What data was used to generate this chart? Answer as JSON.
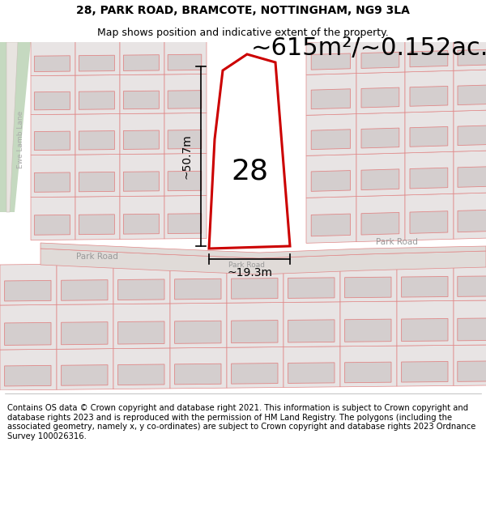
{
  "title": "28, PARK ROAD, BRAMCOTE, NOTTINGHAM, NG9 3LA",
  "subtitle": "Map shows position and indicative extent of the property.",
  "area_label": "~615m²/~0.152ac.",
  "dim_height": "~50.7m",
  "dim_width": "~19.3m",
  "number_label": "28",
  "footer": "Contains OS data © Crown copyright and database right 2021. This information is subject to Crown copyright and database rights 2023 and is reproduced with the permission of HM Land Registry. The polygons (including the associated geometry, namely x, y co-ordinates) are subject to Crown copyright and database rights 2023 Ordnance Survey 100026316.",
  "bg_color": "#f0ecea",
  "plot_line_color": "#cc0000",
  "map_line_color": "#e08888",
  "building_fill": "#d4cece",
  "road_fill": "#e8e4e4",
  "title_fontsize": 10,
  "subtitle_fontsize": 9,
  "area_label_fontsize": 22,
  "dim_fontsize": 10,
  "number_fontsize": 26,
  "footer_fontsize": 7.2,
  "road_label_color": "#999999",
  "street_label_fontsize": 7.5,
  "green_color": "#c5d9c0",
  "white": "#ffffff"
}
